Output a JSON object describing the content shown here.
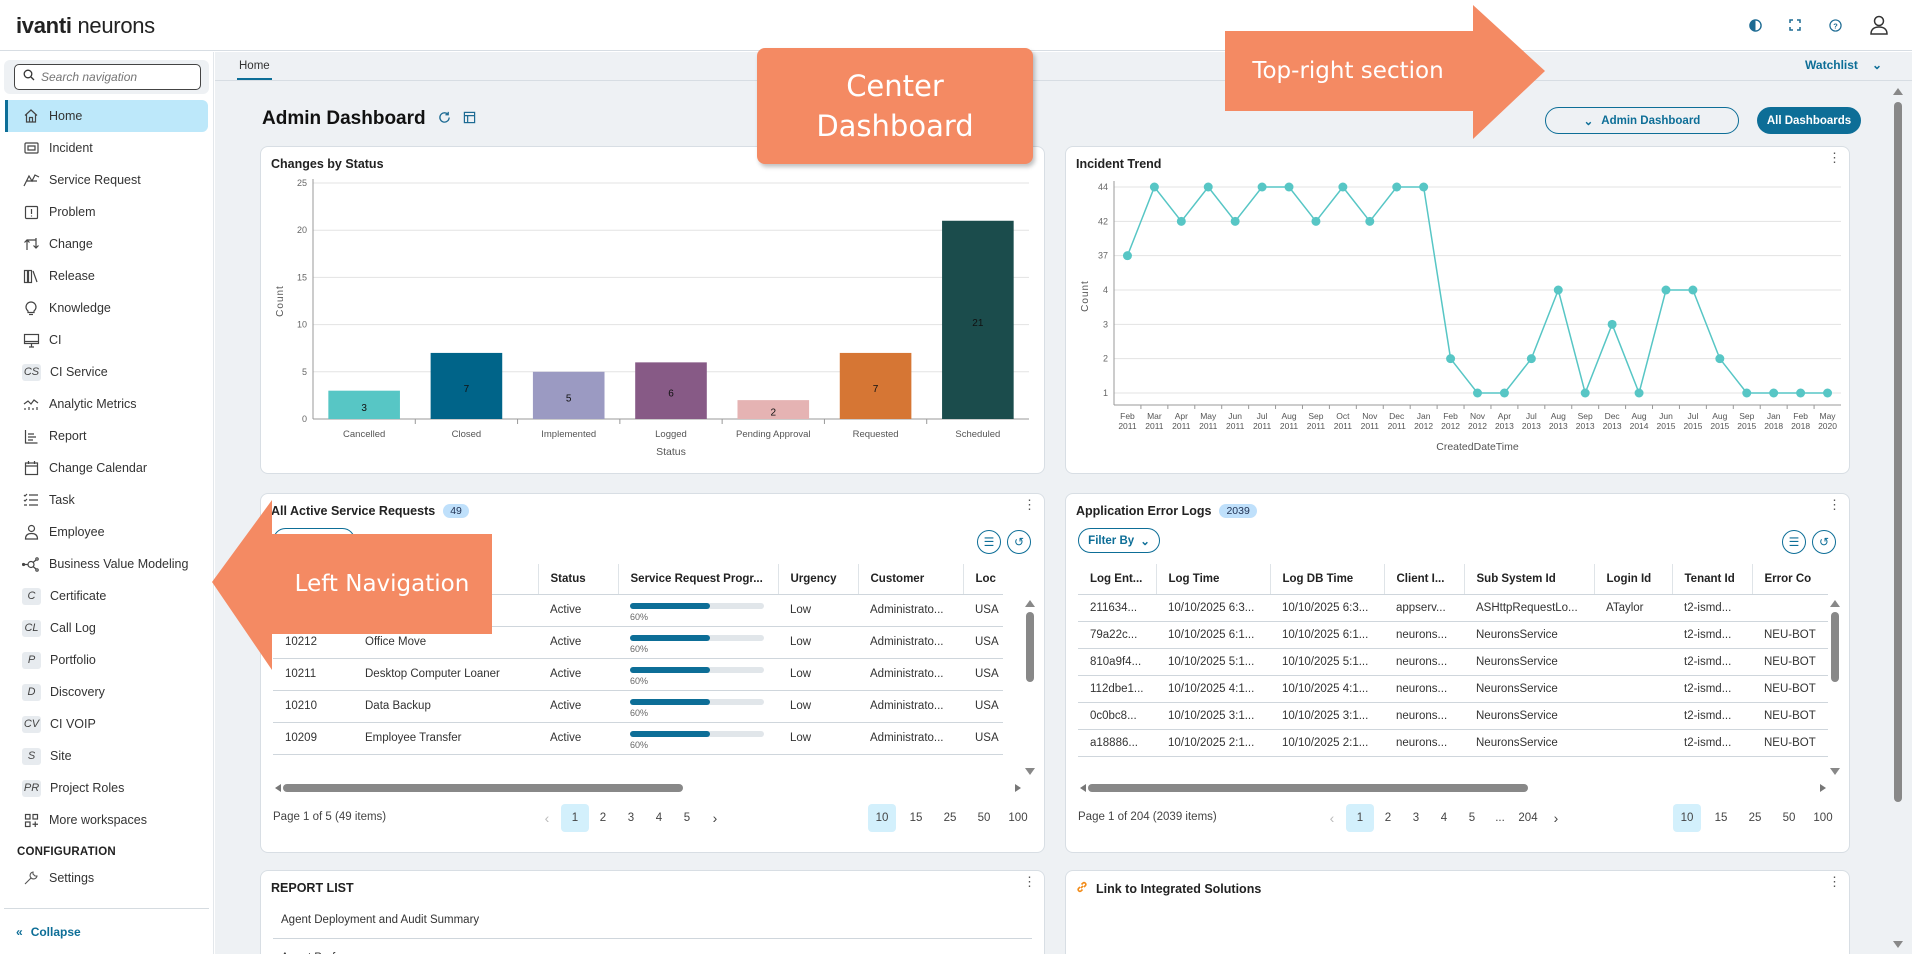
{
  "header": {
    "logo_brand": "ivanti",
    "logo_product": "neurons",
    "icons": [
      "contrast-icon",
      "fullscreen-icon",
      "help-icon",
      "user-avatar-icon"
    ]
  },
  "sidebar": {
    "search_placeholder": "Search navigation",
    "items": [
      {
        "label": "Home",
        "icon": "home-icon",
        "active": true
      },
      {
        "label": "Incident",
        "icon": "incident-icon"
      },
      {
        "label": "Service Request",
        "icon": "service-request-icon"
      },
      {
        "label": "Problem",
        "icon": "problem-icon"
      },
      {
        "label": "Change",
        "icon": "change-icon"
      },
      {
        "label": "Release",
        "icon": "release-icon"
      },
      {
        "label": "Knowledge",
        "icon": "lightbulb-icon"
      },
      {
        "label": "CI",
        "icon": "monitor-icon"
      },
      {
        "label": "CI Service",
        "abbr": "CS"
      },
      {
        "label": "Analytic Metrics",
        "icon": "analytics-icon"
      },
      {
        "label": "Report",
        "icon": "report-icon"
      },
      {
        "label": "Change Calendar",
        "icon": "calendar-icon"
      },
      {
        "label": "Task",
        "icon": "task-list-icon"
      },
      {
        "label": "Employee",
        "icon": "person-icon"
      },
      {
        "label": "Business Value Modeling",
        "icon": "network-icon"
      },
      {
        "label": "Certificate",
        "abbr": "C"
      },
      {
        "label": "Call Log",
        "abbr": "CL"
      },
      {
        "label": "Portfolio",
        "abbr": "P"
      },
      {
        "label": "Discovery",
        "abbr": "D"
      },
      {
        "label": "CI VOIP",
        "abbr": "CV"
      },
      {
        "label": "Site",
        "abbr": "S"
      },
      {
        "label": "Project Roles",
        "abbr": "PR"
      },
      {
        "label": "More workspaces",
        "icon": "add-grid-icon"
      }
    ],
    "section_label": "CONFIGURATION",
    "settings_label": "Settings",
    "collapse_label": "Collapse"
  },
  "breadcrumb": {
    "current": "Home",
    "watchlist_label": "Watchlist"
  },
  "dashboard": {
    "title": "Admin Dashboard",
    "selector_label": "Admin Dashboard",
    "all_dashboards_label": "All Dashboards"
  },
  "changes_card": {
    "title": "Changes by Status"
  },
  "incident_card": {
    "title": "Incident Trend"
  },
  "chart_data": [
    {
      "type": "bar",
      "title": "Changes by Status",
      "xlabel": "Status",
      "ylabel": "Count",
      "ylim": [
        0,
        25
      ],
      "yticks": [
        0,
        5,
        10,
        15,
        20,
        25
      ],
      "grid": true,
      "categories": [
        "Cancelled",
        "Closed",
        "Implemented",
        "Logged",
        "Pending Approval",
        "Requested",
        "Scheduled"
      ],
      "values": [
        3,
        7,
        5,
        6,
        2,
        7,
        21
      ],
      "colors": [
        "#57c6c5",
        "#006489",
        "#9b9ac2",
        "#875a86",
        "#e5b3b3",
        "#d67634",
        "#1b4c4c"
      ]
    },
    {
      "type": "line",
      "title": "Incident Trend",
      "xlabel": "CreatedDateTime",
      "ylabel": "Count",
      "y_scale": "categorical",
      "yticks": [
        "1",
        "2",
        "3",
        "4",
        "37",
        "42",
        "44"
      ],
      "grid": true,
      "color": "#57c6c5",
      "x": [
        "Feb 2011",
        "Mar 2011",
        "Apr 2011",
        "May 2011",
        "Jun 2011",
        "Jul 2011",
        "Aug 2011",
        "Sep 2011",
        "Oct 2011",
        "Nov 2011",
        "Dec 2011",
        "Jan 2012",
        "Feb 2012",
        "Nov 2012",
        "Apr 2013",
        "Jul 2013",
        "Aug 2013",
        "Sep 2013",
        "Dec 2013",
        "Aug 2014",
        "Jun 2015",
        "Jul 2015",
        "Aug 2015",
        "Sep 2015",
        "Jan 2018",
        "Feb 2018",
        "May 2020"
      ],
      "values": [
        37,
        44,
        42,
        44,
        42,
        44,
        44,
        42,
        44,
        42,
        44,
        44,
        2,
        1,
        1,
        2,
        4,
        1,
        3,
        1,
        4,
        4,
        2,
        1,
        1,
        1,
        1
      ]
    }
  ],
  "service_requests": {
    "title": "All Active Service Requests",
    "count": "49",
    "columns": [
      "",
      "",
      "Status",
      "Service Request Progr...",
      "Urgency",
      "Customer",
      "Loc"
    ],
    "rows": [
      {
        "id": "",
        "summary": "",
        "status": "Active",
        "progress": 60,
        "progress_label": "60%",
        "urgency": "Low",
        "customer": "Administrato...",
        "location": "USA"
      },
      {
        "id": "10212",
        "summary": "Office Move",
        "status": "Active",
        "progress": 60,
        "progress_label": "60%",
        "urgency": "Low",
        "customer": "Administrato...",
        "location": "USA"
      },
      {
        "id": "10211",
        "summary": "Desktop Computer Loaner",
        "status": "Active",
        "progress": 60,
        "progress_label": "60%",
        "urgency": "Low",
        "customer": "Administrato...",
        "location": "USA"
      },
      {
        "id": "10210",
        "summary": "Data Backup",
        "status": "Active",
        "progress": 60,
        "progress_label": "60%",
        "urgency": "Low",
        "customer": "Administrato...",
        "location": "USA"
      },
      {
        "id": "10209",
        "summary": "Employee Transfer",
        "status": "Active",
        "progress": 60,
        "progress_label": "60%",
        "urgency": "Low",
        "customer": "Administrato...",
        "location": "USA"
      }
    ],
    "pager_info": "Page 1 of 5 (49 items)",
    "pages": [
      "1",
      "2",
      "3",
      "4",
      "5"
    ],
    "current_page": "1",
    "page_sizes": [
      "10",
      "15",
      "25",
      "50",
      "100"
    ],
    "current_size": "10"
  },
  "error_logs": {
    "title": "Application Error Logs",
    "count": "2039",
    "filter_label": "Filter By",
    "columns": [
      "Log Ent...",
      "Log Time",
      "Log DB Time",
      "Client I...",
      "Sub System Id",
      "Login Id",
      "Tenant Id",
      "Error Co"
    ],
    "rows": [
      [
        "211634...",
        "10/10/2025 6:3...",
        "10/10/2025 6:3...",
        "appserv...",
        "ASHttpRequestLo...",
        "ATaylor",
        "t2-ismd...",
        ""
      ],
      [
        "79a22c...",
        "10/10/2025 6:1...",
        "10/10/2025 6:1...",
        "neurons...",
        "NeuronsService",
        "",
        "t2-ismd...",
        "NEU-BOT"
      ],
      [
        "810a9f4...",
        "10/10/2025 5:1...",
        "10/10/2025 5:1...",
        "neurons...",
        "NeuronsService",
        "",
        "t2-ismd...",
        "NEU-BOT"
      ],
      [
        "112dbe1...",
        "10/10/2025 4:1...",
        "10/10/2025 4:1...",
        "neurons...",
        "NeuronsService",
        "",
        "t2-ismd...",
        "NEU-BOT"
      ],
      [
        "0c0bc8...",
        "10/10/2025 3:1...",
        "10/10/2025 3:1...",
        "neurons...",
        "NeuronsService",
        "",
        "t2-ismd...",
        "NEU-BOT"
      ],
      [
        "a18886...",
        "10/10/2025 2:1...",
        "10/10/2025 2:1...",
        "neurons...",
        "NeuronsService",
        "",
        "t2-ismd...",
        "NEU-BOT"
      ]
    ],
    "pager_info": "Page 1 of 204 (2039 items)",
    "pages": [
      "1",
      "2",
      "3",
      "4",
      "5",
      "...",
      "204"
    ],
    "current_page": "1",
    "page_sizes": [
      "10",
      "15",
      "25",
      "50",
      "100"
    ],
    "current_size": "10"
  },
  "report_list": {
    "title": "REPORT LIST",
    "items": [
      "Agent Deployment and Audit Summary",
      "Agent Performance"
    ]
  },
  "integrations": {
    "title": "Link to Integrated Solutions"
  },
  "annotations": {
    "center": "Center Dashboard",
    "top_right": "Top-right section",
    "left": "Left Navigation"
  }
}
